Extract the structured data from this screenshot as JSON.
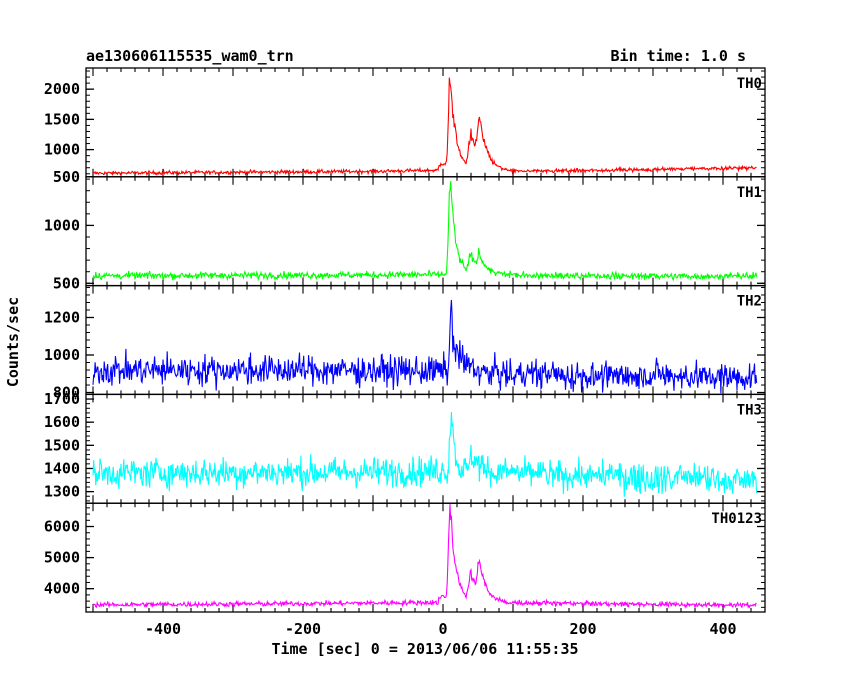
{
  "chart_data": {
    "type": "line",
    "title": "ae130606115535_wam0_trn",
    "bin_time": "Bin time: 1.0 s",
    "xlabel": "Time [sec] 0 = 2013/06/06 11:55:35",
    "ylabel": "Counts/sec",
    "xlim": [
      -510,
      460
    ],
    "x_ticks": [
      -400,
      -200,
      0,
      200,
      400
    ],
    "panels": [
      {
        "name": "TH0",
        "color": "#ff0000",
        "ylim": [
          550,
          2350
        ],
        "y_ticks": [
          500,
          1000,
          1500,
          2000
        ],
        "baseline": [
          [
            -500,
            610
          ],
          [
            -300,
            625
          ],
          [
            -100,
            640
          ],
          [
            0,
            660
          ],
          [
            100,
            640
          ],
          [
            300,
            670
          ],
          [
            450,
            700
          ]
        ],
        "noise": 30,
        "peaks": [
          [
            10,
            1550,
            4
          ],
          [
            40,
            580,
            6
          ],
          [
            52,
            700,
            5
          ],
          [
            0,
            120,
            10
          ]
        ],
        "wide": 2
      },
      {
        "name": "TH1",
        "color": "#00ff00",
        "ylim": [
          480,
          1420
        ],
        "y_ticks": [
          500,
          1000
        ],
        "baseline": [
          [
            -500,
            565
          ],
          [
            -200,
            570
          ],
          [
            0,
            575
          ],
          [
            200,
            565
          ],
          [
            450,
            560
          ]
        ],
        "noise": 30,
        "peaks": [
          [
            10,
            830,
            4
          ],
          [
            40,
            150,
            6
          ],
          [
            52,
            130,
            5
          ]
        ],
        "wide": 2
      },
      {
        "name": "TH2",
        "color": "#0000ff",
        "ylim": [
          790,
          1370
        ],
        "y_ticks": [
          800,
          1000,
          1200
        ],
        "baseline": [
          [
            -500,
            920
          ],
          [
            -200,
            920
          ],
          [
            0,
            915
          ],
          [
            100,
            895
          ],
          [
            450,
            880
          ]
        ],
        "noise": 80,
        "peaks": [
          [
            12,
            330,
            4
          ],
          [
            25,
            60,
            12
          ]
        ],
        "wide": 1.2
      },
      {
        "name": "TH3",
        "color": "#00ffff",
        "ylim": [
          1250,
          1720
        ],
        "y_ticks": [
          1300,
          1400,
          1500,
          1600,
          1700
        ],
        "baseline": [
          [
            -500,
            1380
          ],
          [
            -100,
            1385
          ],
          [
            0,
            1390
          ],
          [
            200,
            1370
          ],
          [
            450,
            1345
          ]
        ],
        "noise": 65,
        "peaks": [
          [
            12,
            270,
            4
          ],
          [
            42,
            60,
            8
          ]
        ],
        "wide": 1.2
      },
      {
        "name": "TH0123",
        "color": "#ff00ff",
        "ylim": [
          3250,
          6750
        ],
        "y_ticks": [
          4000,
          5000,
          6000
        ],
        "baseline": [
          [
            -500,
            3480
          ],
          [
            -200,
            3520
          ],
          [
            0,
            3560
          ],
          [
            200,
            3520
          ],
          [
            450,
            3470
          ]
        ],
        "noise": 80,
        "peaks": [
          [
            10,
            3050,
            4
          ],
          [
            40,
            900,
            6
          ],
          [
            52,
            950,
            5
          ],
          [
            0,
            200,
            10
          ]
        ],
        "wide": 2
      }
    ]
  }
}
